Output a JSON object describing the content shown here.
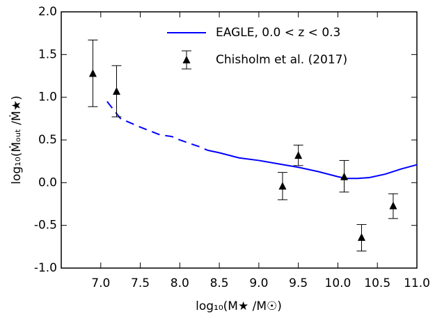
{
  "chart_data": {
    "type": "line_errorbar",
    "xlabel": "log₁₀(M★ /M☉)",
    "ylabel": "log₁₀(Ṁₒᵤₜ /Ṁ★)",
    "xlim": [
      6.5,
      11.0
    ],
    "xticks": [
      7.0,
      7.5,
      8.0,
      8.5,
      9.0,
      9.5,
      10.0,
      10.5,
      11.0
    ],
    "ylim": [
      -1.0,
      2.0
    ],
    "yticks": [
      -1.0,
      -0.5,
      0.0,
      0.5,
      1.0,
      1.5,
      2.0
    ],
    "legend": "upper right",
    "series": [
      {
        "name": "EAGLE, 0.0 < z < 0.3",
        "color": "#0000ff",
        "kind": "line",
        "dashed_xlim": [
          7.08,
          8.35
        ],
        "x": [
          7.08,
          7.25,
          7.5,
          7.75,
          7.9,
          8.0,
          8.25,
          8.35,
          8.5,
          8.75,
          9.0,
          9.25,
          9.5,
          9.75,
          10.0,
          10.1,
          10.25,
          10.4,
          10.6,
          10.8,
          11.0
        ],
        "values": [
          0.95,
          0.75,
          0.65,
          0.56,
          0.54,
          0.5,
          0.42,
          0.38,
          0.35,
          0.29,
          0.26,
          0.22,
          0.18,
          0.13,
          0.07,
          0.05,
          0.05,
          0.06,
          0.1,
          0.16,
          0.21
        ]
      },
      {
        "name": "Chisholm et al. (2017)",
        "color": "#000000",
        "kind": "errorbar",
        "x": [
          6.9,
          7.2,
          9.3,
          9.5,
          10.08,
          10.3,
          10.7
        ],
        "values": [
          1.28,
          1.07,
          -0.04,
          0.32,
          0.07,
          -0.64,
          -0.27
        ],
        "err_low": [
          0.39,
          0.3,
          0.16,
          0.12,
          0.18,
          0.16,
          0.15
        ],
        "err_high": [
          0.39,
          0.3,
          0.16,
          0.12,
          0.19,
          0.15,
          0.14
        ]
      }
    ]
  }
}
